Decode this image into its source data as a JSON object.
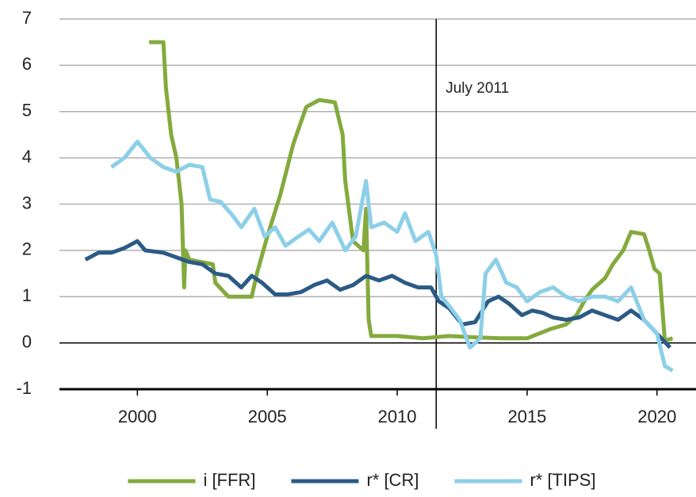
{
  "chart_data": {
    "type": "line",
    "xlim": [
      1997,
      2021.5
    ],
    "ylim": [
      -1,
      7
    ],
    "xticks": [
      2000,
      2005,
      2010,
      2015,
      2020
    ],
    "yticks": [
      -1,
      0,
      1,
      2,
      3,
      4,
      5,
      6,
      7
    ],
    "grid": true,
    "legend": "bottom",
    "annotations": [
      {
        "text": "July 2011",
        "x": 2011.5
      }
    ],
    "series": [
      {
        "name": "i [FFR]",
        "color": "#84aa3e",
        "x": [
          2000.45,
          2001.0,
          2001.1,
          2001.3,
          2001.5,
          2001.7,
          2001.8,
          2001.85,
          2002.0,
          2002.9,
          2003.0,
          2003.5,
          2004.4,
          2004.6,
          2005.0,
          2005.5,
          2006.0,
          2006.5,
          2007.0,
          2007.6,
          2007.9,
          2008.0,
          2008.3,
          2008.7,
          2008.8,
          2008.9,
          2009.0,
          2010.0,
          2011.0,
          2012.0,
          2013.0,
          2014.0,
          2015.0,
          2015.9,
          2016.5,
          2016.9,
          2017.2,
          2017.5,
          2018.0,
          2018.3,
          2018.7,
          2019.0,
          2019.5,
          2019.7,
          2019.9,
          2020.1,
          2020.3,
          2020.6
        ],
        "values": [
          6.5,
          6.5,
          5.5,
          4.5,
          4.0,
          3.0,
          1.2,
          2.0,
          1.8,
          1.7,
          1.3,
          1.0,
          1.0,
          1.5,
          2.3,
          3.2,
          4.3,
          5.1,
          5.25,
          5.2,
          4.5,
          3.5,
          2.2,
          2.0,
          2.9,
          0.5,
          0.15,
          0.15,
          0.1,
          0.15,
          0.12,
          0.1,
          0.1,
          0.3,
          0.4,
          0.6,
          0.9,
          1.15,
          1.4,
          1.7,
          2.0,
          2.4,
          2.35,
          2.0,
          1.6,
          1.5,
          0.05,
          0.1
        ]
      },
      {
        "name": "r* [CR]",
        "color": "#2b5a85",
        "x": [
          1998.0,
          1998.5,
          1999.0,
          1999.5,
          2000.0,
          2000.3,
          2001.0,
          2001.5,
          2002.0,
          2002.5,
          2003.0,
          2003.5,
          2004.0,
          2004.4,
          2004.8,
          2005.3,
          2005.8,
          2006.3,
          2006.8,
          2007.3,
          2007.8,
          2008.3,
          2008.8,
          2009.3,
          2009.8,
          2010.3,
          2010.8,
          2011.3,
          2011.6,
          2012.0,
          2012.5,
          2013.0,
          2013.5,
          2013.9,
          2014.3,
          2014.8,
          2015.2,
          2015.6,
          2016.0,
          2016.5,
          2017.0,
          2017.5,
          2018.0,
          2018.5,
          2019.0,
          2019.5,
          2020.0,
          2020.5
        ],
        "values": [
          1.8,
          1.95,
          1.95,
          2.05,
          2.2,
          2.0,
          1.95,
          1.85,
          1.75,
          1.7,
          1.5,
          1.45,
          1.2,
          1.45,
          1.3,
          1.05,
          1.05,
          1.1,
          1.25,
          1.35,
          1.15,
          1.25,
          1.45,
          1.35,
          1.45,
          1.3,
          1.2,
          1.2,
          0.9,
          0.75,
          0.4,
          0.45,
          0.9,
          1.0,
          0.85,
          0.6,
          0.7,
          0.65,
          0.55,
          0.5,
          0.55,
          0.7,
          0.6,
          0.5,
          0.7,
          0.5,
          0.2,
          -0.1
        ]
      },
      {
        "name": "r* [TIPS]",
        "color": "#8ccfe8",
        "x": [
          1999.0,
          1999.5,
          2000.0,
          2000.5,
          2001.0,
          2001.5,
          2002.0,
          2002.5,
          2002.8,
          2003.2,
          2003.6,
          2004.0,
          2004.5,
          2004.9,
          2005.3,
          2005.7,
          2006.2,
          2006.6,
          2007.0,
          2007.5,
          2008.0,
          2008.4,
          2008.8,
          2009.0,
          2009.5,
          2010.0,
          2010.3,
          2010.7,
          2011.2,
          2011.5,
          2011.7,
          2012.0,
          2012.4,
          2012.8,
          2013.2,
          2013.4,
          2013.8,
          2014.2,
          2014.6,
          2015.0,
          2015.5,
          2016.0,
          2016.5,
          2017.0,
          2017.5,
          2018.0,
          2018.5,
          2019.0,
          2019.5,
          2020.0,
          2020.3,
          2020.6
        ],
        "values": [
          3.8,
          4.0,
          4.35,
          4.0,
          3.8,
          3.7,
          3.85,
          3.8,
          3.1,
          3.05,
          2.8,
          2.5,
          2.9,
          2.3,
          2.5,
          2.1,
          2.3,
          2.45,
          2.2,
          2.6,
          2.0,
          2.3,
          3.5,
          2.5,
          2.6,
          2.4,
          2.8,
          2.2,
          2.4,
          1.9,
          1.0,
          0.8,
          0.5,
          -0.1,
          0.1,
          1.5,
          1.8,
          1.3,
          1.2,
          0.9,
          1.1,
          1.2,
          1.0,
          0.9,
          1.0,
          1.0,
          0.9,
          1.2,
          0.5,
          0.2,
          -0.5,
          -0.6
        ]
      }
    ]
  }
}
